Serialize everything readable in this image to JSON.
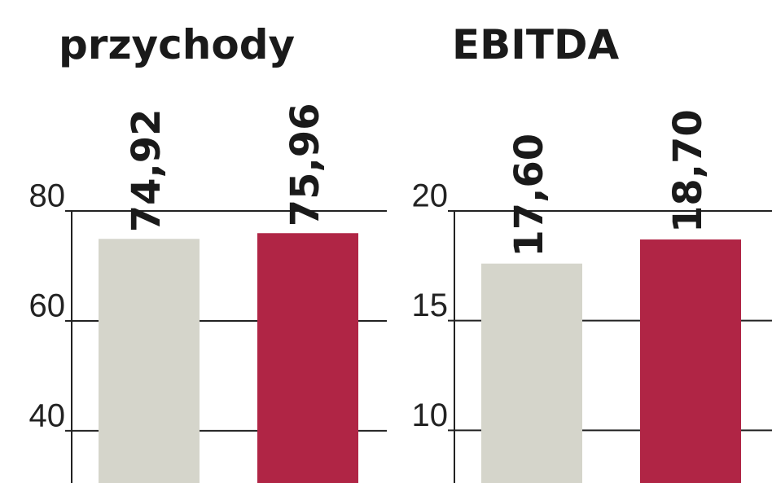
{
  "chart_data": [
    {
      "type": "bar",
      "title": "przychody",
      "categories": [
        null,
        null
      ],
      "values": [
        74.92,
        75.96
      ],
      "value_labels": [
        "74,92",
        "75,96"
      ],
      "colors": [
        "#d5d5cb",
        "#b02545"
      ],
      "ylim": [
        30.5,
        80
      ],
      "yticks": [
        40,
        60,
        80
      ],
      "grid": true
    },
    {
      "type": "bar",
      "title": "EBITDA",
      "categories": [
        null,
        null
      ],
      "values": [
        17.6,
        18.7
      ],
      "value_labels": [
        "17,60",
        "18,70"
      ],
      "colors": [
        "#d5d5cb",
        "#b02545"
      ],
      "ylim": [
        7.6,
        20
      ],
      "yticks": [
        10,
        15,
        20
      ],
      "grid": true
    }
  ]
}
